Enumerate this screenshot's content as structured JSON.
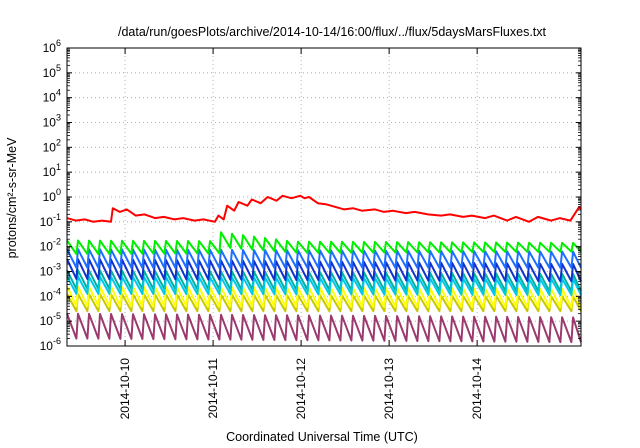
{
  "chart_data": {
    "type": "line",
    "title": "/data/run/goesPlots/archive/2014-10-14/16:00/flux/../flux/5daysMarsFluxes.txt",
    "xlabel": "Coordinated Universal Time (UTC)",
    "ylabel": "protons/cm²-s-sr-MeV",
    "y_scale": "log",
    "ylim_exp": [
      -6,
      6
    ],
    "y_tick_base": "10",
    "y_tick_exponents": [
      "-6",
      "-5",
      "-4",
      "-3",
      "-2",
      "-1",
      "0",
      "1",
      "2",
      "3",
      "4",
      "5",
      "6"
    ],
    "xlim_days": [
      0.0,
      5.84
    ],
    "x_tick_labels": [
      "2014-10-10",
      "2014-10-11",
      "2014-10-12",
      "2014-10-13",
      "2014-10-14"
    ],
    "x_tick_days": [
      0.66,
      1.66,
      2.66,
      3.66,
      4.66
    ],
    "grid": true,
    "colors": {
      "red": "#ff0000",
      "green": "#00ee00",
      "blue": "#1e6fff",
      "navy": "#1133cc",
      "teal": "#00b0a0",
      "cyan": "#00c8e8",
      "yellow": "#ffff00",
      "gold": "#c8c800",
      "purple": "#9b3a6e"
    },
    "series": [
      {
        "key": "red",
        "color": "#ff0000",
        "sawtooth": false,
        "points": [
          [
            0.0,
            -0.85
          ],
          [
            0.1,
            -0.95
          ],
          [
            0.2,
            -0.9
          ],
          [
            0.3,
            -1.0
          ],
          [
            0.4,
            -0.95
          ],
          [
            0.5,
            -1.0
          ],
          [
            0.52,
            -0.45
          ],
          [
            0.6,
            -0.6
          ],
          [
            0.68,
            -0.5
          ],
          [
            0.78,
            -0.75
          ],
          [
            0.88,
            -0.7
          ],
          [
            1.0,
            -0.85
          ],
          [
            1.1,
            -0.8
          ],
          [
            1.22,
            -0.9
          ],
          [
            1.32,
            -0.85
          ],
          [
            1.45,
            -0.95
          ],
          [
            1.55,
            -0.9
          ],
          [
            1.68,
            -1.0
          ],
          [
            1.72,
            -0.75
          ],
          [
            1.78,
            -0.9
          ],
          [
            1.82,
            -0.35
          ],
          [
            1.9,
            -0.55
          ],
          [
            1.95,
            -0.2
          ],
          [
            2.05,
            -0.35
          ],
          [
            2.1,
            -0.1
          ],
          [
            2.2,
            -0.25
          ],
          [
            2.28,
            0.0
          ],
          [
            2.38,
            -0.15
          ],
          [
            2.45,
            0.05
          ],
          [
            2.55,
            -0.05
          ],
          [
            2.65,
            0.05
          ],
          [
            2.7,
            -0.05
          ],
          [
            2.75,
            0.0
          ],
          [
            2.85,
            -0.25
          ],
          [
            2.95,
            -0.3
          ],
          [
            3.05,
            -0.4
          ],
          [
            3.15,
            -0.5
          ],
          [
            3.25,
            -0.45
          ],
          [
            3.35,
            -0.55
          ],
          [
            3.5,
            -0.5
          ],
          [
            3.6,
            -0.6
          ],
          [
            3.7,
            -0.55
          ],
          [
            3.85,
            -0.65
          ],
          [
            3.95,
            -0.6
          ],
          [
            4.1,
            -0.7
          ],
          [
            4.25,
            -0.75
          ],
          [
            4.35,
            -0.7
          ],
          [
            4.5,
            -0.8
          ],
          [
            4.6,
            -0.75
          ],
          [
            4.75,
            -0.85
          ],
          [
            4.85,
            -0.75
          ],
          [
            5.0,
            -0.95
          ],
          [
            5.1,
            -0.8
          ],
          [
            5.25,
            -1.0
          ],
          [
            5.35,
            -0.8
          ],
          [
            5.5,
            -0.95
          ],
          [
            5.6,
            -0.85
          ],
          [
            5.72,
            -0.95
          ],
          [
            5.82,
            -0.4
          ],
          [
            5.84,
            -0.5
          ]
        ]
      },
      {
        "key": "purple",
        "color": "#9b3a6e",
        "sawtooth": true,
        "hi_start": -4.7,
        "lo_start": -5.7,
        "hi_end": -4.85,
        "lo_end": -5.85
      },
      {
        "key": "gold",
        "color": "#c8c800",
        "sawtooth": true,
        "hi_start": -3.9,
        "lo_start": -4.6,
        "hi_end": -4.0,
        "lo_end": -4.6
      },
      {
        "key": "yellow",
        "color": "#ffff00",
        "sawtooth": true,
        "hi_start": -3.6,
        "lo_start": -4.4,
        "hi_end": -3.7,
        "lo_end": -4.45
      },
      {
        "key": "teal",
        "color": "#00b0a0",
        "sawtooth": true,
        "hi_start": -2.95,
        "lo_start": -3.7,
        "hi_end": -3.1,
        "lo_end": -3.8
      },
      {
        "key": "cyan",
        "color": "#00c8e8",
        "sawtooth": true,
        "hi_start": -3.2,
        "lo_start": -3.9,
        "hi_end": -3.3,
        "lo_end": -3.95
      },
      {
        "key": "navy",
        "color": "#1133cc",
        "sawtooth": true,
        "hi_start": -2.5,
        "lo_start": -3.3,
        "hi_end": -2.7,
        "lo_end": -3.4
      },
      {
        "key": "blue",
        "color": "#1e6fff",
        "sawtooth": true,
        "hi_start": -2.1,
        "lo_start": -2.85,
        "hi_end": -2.2,
        "lo_end": -2.85
      },
      {
        "key": "green",
        "color": "#00ee00",
        "sawtooth": true,
        "hi_start": -1.75,
        "lo_start": -2.3,
        "hi_end": -1.85,
        "lo_end": -2.2,
        "step_at": 1.66,
        "step_bump": 0.4
      }
    ],
    "sawtooth_period_days": 0.125
  }
}
